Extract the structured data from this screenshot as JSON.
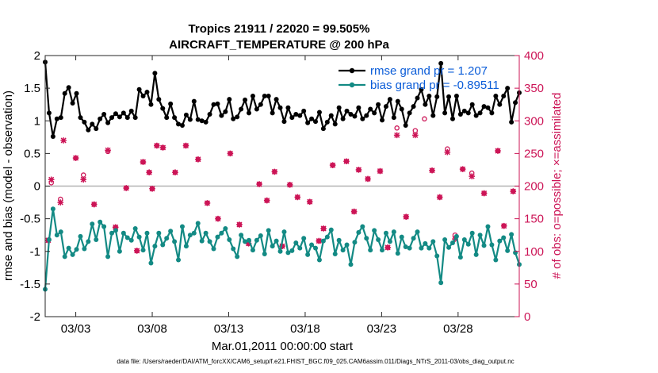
{
  "chart_data": {
    "type": "line",
    "title": "Tropics 21911 / 22020 = 99.505%",
    "subtitle": "AIRCRAFT_TEMPERATURE @ 200 hPa",
    "xlabel": "Mar.01,2011 00:00:00 start",
    "ylabel": "rmse and bias (model - observation)",
    "ylabel_right": "# of obs: o=possible; ×=assimilated",
    "xlim": [
      1.0,
      32.0
    ],
    "ylim": [
      -2,
      2
    ],
    "ylim_right": [
      0,
      400
    ],
    "x_ticks": [
      {
        "value": 3,
        "label": "03/03"
      },
      {
        "value": 8,
        "label": "03/08"
      },
      {
        "value": 13,
        "label": "03/13"
      },
      {
        "value": 18,
        "label": "03/18"
      },
      {
        "value": 23,
        "label": "03/23"
      },
      {
        "value": 28,
        "label": "03/28"
      }
    ],
    "y_ticks": [
      "-2",
      "-1.5",
      "-1",
      "-0.5",
      "0",
      "0.5",
      "1",
      "1.5",
      "2"
    ],
    "y_ticks_right": [
      "0",
      "50",
      "100",
      "150",
      "200",
      "250",
      "300",
      "350",
      "400"
    ],
    "zero_line": true,
    "legend_position": "top-right",
    "series": [
      {
        "name": "rmse",
        "legend": "rmse grand pr = 1.207",
        "color": "#000000",
        "marker": "dot",
        "y": [
          1.9,
          1.12,
          0.76,
          1.03,
          1.05,
          1.42,
          1.51,
          1.27,
          1.42,
          1.05,
          0.98,
          0.86,
          0.95,
          0.88,
          1.03,
          1.1,
          0.97,
          1.05,
          1.11,
          1.06,
          1.12,
          1.05,
          1.15,
          1.05,
          1.48,
          1.38,
          1.44,
          1.25,
          1.73,
          1.33,
          1.19,
          1.05,
          1.26,
          1.05,
          0.95,
          0.93,
          1.09,
          1.02,
          1.3,
          1.02,
          1.0,
          0.98,
          1.1,
          1.25,
          1.26,
          1.08,
          1.14,
          1.33,
          1.03,
          1.06,
          1.18,
          1.32,
          1.12,
          1.38,
          1.18,
          1.25,
          1.38,
          1.38,
          1.12,
          1.33,
          1.2,
          0.99,
          1.2,
          1.05,
          1.1,
          1.08,
          1.15,
          0.97,
          1.03,
          0.99,
          1.13,
          0.88,
          0.98,
          1.08,
          0.95,
          1.2,
          1.03,
          1.15,
          1.1,
          1.07,
          1.2,
          1.03,
          1.08,
          1.18,
          1.12,
          1.25,
          1.01,
          1.22,
          1.33,
          1.05,
          1.3,
          1.18,
          0.93,
          1.12,
          1.22,
          1.35,
          1.48,
          1.25,
          1.38,
          1.08,
          1.37,
          1.88,
          1.12,
          1.37,
          1.03,
          1.38,
          1.1,
          1.15,
          1.12,
          1.25,
          1.08,
          1.12,
          1.22,
          1.2,
          1.12,
          1.38,
          1.25,
          1.38,
          1.5,
          0.98,
          1.28,
          1.43
        ]
      },
      {
        "name": "bias",
        "legend": "bias grand pr = -0.89511",
        "color": "#138a84",
        "marker": "dot",
        "y": [
          -1.58,
          -0.82,
          -0.35,
          -0.75,
          -0.7,
          -1.08,
          -0.95,
          -1.05,
          -0.97,
          -0.77,
          -0.96,
          -0.85,
          -0.58,
          -0.82,
          -0.55,
          -0.62,
          -1.08,
          -0.72,
          -0.68,
          -1.0,
          -0.72,
          -0.79,
          -0.83,
          -0.65,
          -0.78,
          -0.98,
          -0.72,
          -1.18,
          -0.92,
          -0.72,
          -0.9,
          -0.8,
          -0.69,
          -0.85,
          -1.13,
          -0.62,
          -0.92,
          -0.75,
          -0.72,
          -0.57,
          -0.84,
          -0.72,
          -0.85,
          -0.96,
          -0.78,
          -0.72,
          -0.65,
          -0.82,
          -0.96,
          -1.08,
          -0.75,
          -0.85,
          -0.83,
          -0.98,
          -0.83,
          -0.76,
          -1.04,
          -0.68,
          -0.92,
          -0.84,
          -1.0,
          -0.7,
          -1.02,
          -0.99,
          -0.87,
          -0.95,
          -0.8,
          -1.05,
          -0.9,
          -0.95,
          -1.13,
          -0.84,
          -0.78,
          -0.67,
          -1.04,
          -0.83,
          -0.98,
          -0.9,
          -1.2,
          -0.86,
          -0.71,
          -0.62,
          -0.8,
          -0.98,
          -0.68,
          -0.82,
          -0.98,
          -0.72,
          -0.85,
          -0.7,
          -1.03,
          -0.78,
          -0.93,
          -0.95,
          -0.8,
          -0.7,
          -0.95,
          -0.88,
          -0.95,
          -0.85,
          -1.07,
          -1.48,
          -0.82,
          -0.94,
          -0.87,
          -0.77,
          -1.09,
          -0.82,
          -0.89,
          -0.72,
          -1.05,
          -0.75,
          -0.91,
          -0.62,
          -0.9,
          -1.13,
          -0.84,
          -0.79,
          -0.99,
          -0.74,
          -1.02,
          -1.2
        ]
      }
    ],
    "obs_possible": {
      "name": "obs possible",
      "marker": "o",
      "color": "#cc1456",
      "points": [
        [
          1.2,
          117
        ],
        [
          1.4,
          205
        ],
        [
          2.0,
          180
        ],
        [
          3.0,
          243
        ],
        [
          3.5,
          217
        ],
        [
          4.2,
          172
        ],
        [
          5.1,
          253
        ],
        [
          5.6,
          137
        ],
        [
          6.3,
          197
        ],
        [
          7.0,
          101
        ],
        [
          7.4,
          237
        ],
        [
          7.8,
          221
        ],
        [
          8.0,
          196
        ],
        [
          8.3,
          262
        ],
        [
          8.7,
          259
        ],
        [
          9.5,
          221
        ],
        [
          10.2,
          262
        ],
        [
          11.0,
          241
        ],
        [
          11.6,
          174
        ],
        [
          12.3,
          150
        ],
        [
          13.1,
          250
        ],
        [
          13.7,
          141
        ],
        [
          14.3,
          112
        ],
        [
          15.0,
          203
        ],
        [
          15.5,
          178
        ],
        [
          16.0,
          222
        ],
        [
          16.5,
          108
        ],
        [
          17.0,
          202
        ],
        [
          17.5,
          183
        ],
        [
          18.3,
          176
        ],
        [
          18.9,
          116
        ],
        [
          19.2,
          135
        ],
        [
          19.8,
          232
        ],
        [
          20.7,
          238
        ],
        [
          21.2,
          161
        ],
        [
          21.5,
          225
        ],
        [
          22.1,
          211
        ],
        [
          22.9,
          223
        ],
        [
          23.4,
          106
        ],
        [
          24.0,
          289
        ],
        [
          24.6,
          153
        ],
        [
          25.2,
          285
        ],
        [
          25.8,
          303
        ],
        [
          26.3,
          224
        ],
        [
          26.8,
          183
        ],
        [
          27.3,
          257
        ],
        [
          27.8,
          125
        ],
        [
          28.3,
          226
        ],
        [
          28.9,
          220
        ],
        [
          29.7,
          189
        ],
        [
          30.6,
          254
        ],
        [
          31.0,
          139
        ],
        [
          31.6,
          192
        ]
      ]
    },
    "obs_assimilated": {
      "name": "obs assimilated",
      "marker": "x",
      "color": "#cc1456",
      "points": [
        [
          1.2,
          117
        ],
        [
          1.4,
          210
        ],
        [
          2.0,
          175
        ],
        [
          2.2,
          270
        ],
        [
          3.0,
          243
        ],
        [
          3.5,
          210
        ],
        [
          4.2,
          172
        ],
        [
          5.1,
          255
        ],
        [
          5.6,
          137
        ],
        [
          6.3,
          197
        ],
        [
          7.0,
          101
        ],
        [
          7.4,
          237
        ],
        [
          7.8,
          221
        ],
        [
          8.0,
          196
        ],
        [
          8.3,
          262
        ],
        [
          8.7,
          259
        ],
        [
          9.5,
          221
        ],
        [
          10.2,
          262
        ],
        [
          11.0,
          241
        ],
        [
          11.6,
          174
        ],
        [
          12.3,
          150
        ],
        [
          13.1,
          250
        ],
        [
          13.7,
          141
        ],
        [
          14.3,
          112
        ],
        [
          15.0,
          203
        ],
        [
          15.5,
          178
        ],
        [
          16.0,
          222
        ],
        [
          16.5,
          108
        ],
        [
          17.0,
          202
        ],
        [
          17.5,
          183
        ],
        [
          18.3,
          176
        ],
        [
          18.9,
          116
        ],
        [
          19.2,
          135
        ],
        [
          19.8,
          232
        ],
        [
          20.7,
          238
        ],
        [
          21.2,
          161
        ],
        [
          21.5,
          225
        ],
        [
          22.1,
          211
        ],
        [
          22.9,
          223
        ],
        [
          23.4,
          106
        ],
        [
          24.0,
          278
        ],
        [
          24.6,
          153
        ],
        [
          25.2,
          278
        ],
        [
          26.3,
          224
        ],
        [
          26.8,
          183
        ],
        [
          27.3,
          252
        ],
        [
          27.8,
          119
        ],
        [
          28.3,
          226
        ],
        [
          28.9,
          215
        ],
        [
          29.7,
          189
        ],
        [
          30.6,
          254
        ],
        [
          31.0,
          139
        ],
        [
          31.6,
          192
        ]
      ]
    },
    "footer": "data file: /Users/raeder/DAI/ATM_forcXX/CAM6_setup/f.e21.FHIST_BGC.f09_025.CAM6assim.011/Diags_NTrS_2011-03/obs_diag_output.nc"
  }
}
